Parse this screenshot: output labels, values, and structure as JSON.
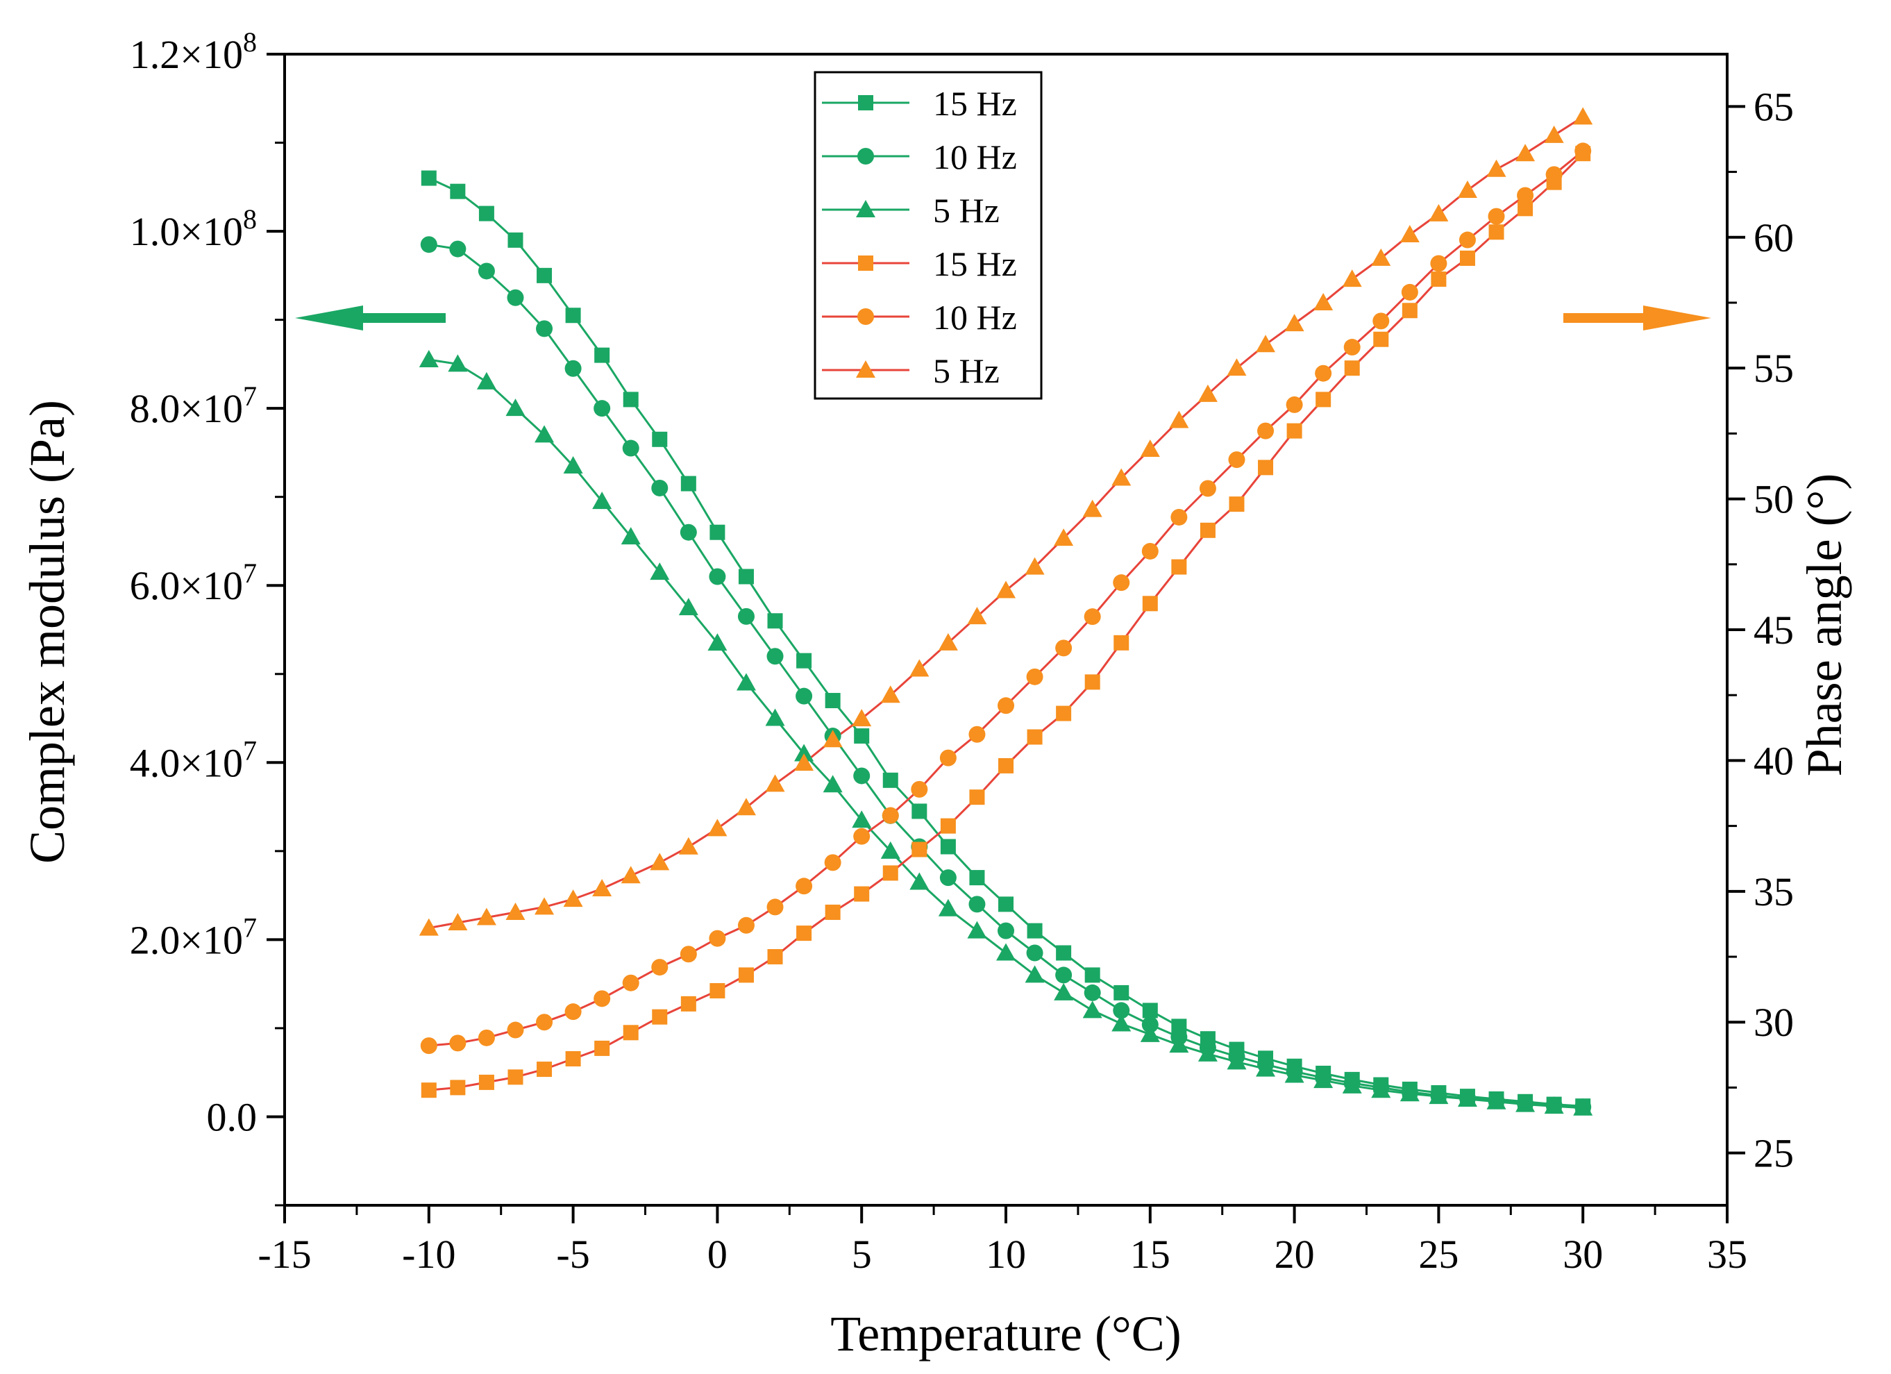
{
  "chart_data": {
    "type": "scatter",
    "title": "",
    "xlabel": "Temperature (°C)",
    "ylabel_left": "Complex modulus (Pa)",
    "ylabel_right": "Phase angle (°)",
    "xlim": [
      -15,
      35
    ],
    "ylim_left": [
      -10000000,
      120000000
    ],
    "ylim_right": [
      23,
      67
    ],
    "x_ticks": [
      "-15",
      "-10",
      "-5",
      "0",
      "5",
      "10",
      "15",
      "20",
      "25",
      "30",
      "35"
    ],
    "y_ticks_left": [
      {
        "value": 0,
        "label": "0.0"
      },
      {
        "value": 20000000,
        "mant": "2.0×10",
        "exp": "7"
      },
      {
        "value": 40000000,
        "mant": "4.0×10",
        "exp": "7"
      },
      {
        "value": 60000000,
        "mant": "6.0×10",
        "exp": "7"
      },
      {
        "value": 80000000,
        "mant": "8.0×10",
        "exp": "7"
      },
      {
        "value": 100000000,
        "mant": "1.0×10",
        "exp": "8"
      },
      {
        "value": 120000000,
        "mant": "1.2×10",
        "exp": "8"
      }
    ],
    "y_ticks_right": [
      "25",
      "30",
      "35",
      "40",
      "45",
      "50",
      "55",
      "60",
      "65"
    ],
    "colors": {
      "modulus": "#1aa764",
      "phase": "#f7901e",
      "line_green": "#1aa764",
      "line_red": "#e8443a"
    },
    "legend": [
      {
        "label": "15 Hz",
        "marker": "square",
        "group": "modulus"
      },
      {
        "label": "10 Hz",
        "marker": "circle",
        "group": "modulus"
      },
      {
        "label": "5 Hz",
        "marker": "triangle",
        "group": "modulus"
      },
      {
        "label": "15 Hz",
        "marker": "square",
        "group": "phase"
      },
      {
        "label": "10 Hz",
        "marker": "circle",
        "group": "phase"
      },
      {
        "label": "5 Hz",
        "marker": "triangle",
        "group": "phase"
      }
    ],
    "x": [
      -10,
      -9,
      -8,
      -7,
      -6,
      -5,
      -4,
      -3,
      -2,
      -1,
      0,
      1,
      2,
      3,
      4,
      5,
      6,
      7,
      8,
      9,
      10,
      11,
      12,
      13,
      14,
      15,
      16,
      17,
      18,
      19,
      20,
      21,
      22,
      23,
      24,
      25,
      26,
      27,
      28,
      29,
      30
    ],
    "series": [
      {
        "name": "15 Hz",
        "axis": "left",
        "marker": "square",
        "values": [
          106,
          104.5,
          102,
          99,
          95,
          90.5,
          86,
          81,
          76.5,
          71.5,
          66,
          61,
          56,
          51.5,
          47,
          43,
          38,
          34.5,
          30.5,
          27,
          24,
          21,
          18.5,
          16,
          14,
          12,
          10.2,
          8.8,
          7.6,
          6.6,
          5.7,
          4.9,
          4.2,
          3.6,
          3.1,
          2.7,
          2.3,
          2.0,
          1.7,
          1.4,
          1.2
        ]
      },
      {
        "name": "10 Hz",
        "axis": "left",
        "marker": "circle",
        "values": [
          98.5,
          98,
          95.5,
          92.5,
          89,
          84.5,
          80,
          75.5,
          71,
          66,
          61,
          56.5,
          52,
          47.5,
          43,
          38.5,
          34,
          30.5,
          27,
          24,
          21,
          18.5,
          16,
          14,
          12,
          10.4,
          9.0,
          7.8,
          6.8,
          5.9,
          5.1,
          4.4,
          3.8,
          3.3,
          2.8,
          2.4,
          2.1,
          1.8,
          1.5,
          1.3,
          1.1
        ]
      },
      {
        "name": "5 Hz",
        "axis": "left",
        "marker": "triangle",
        "values": [
          85.5,
          85,
          83,
          80,
          77,
          73.5,
          69.5,
          65.5,
          61.5,
          57.5,
          53.5,
          49,
          45,
          41,
          37.5,
          33.5,
          30,
          26.5,
          23.5,
          21,
          18.5,
          16,
          14,
          12,
          10.5,
          9.3,
          8.1,
          7.1,
          6.2,
          5.4,
          4.7,
          4.1,
          3.5,
          3.0,
          2.6,
          2.3,
          2.0,
          1.7,
          1.4,
          1.2,
          1.0
        ]
      },
      {
        "name": "15 Hz",
        "axis": "right",
        "marker": "square",
        "values": [
          27.4,
          27.5,
          27.7,
          27.9,
          28.2,
          28.6,
          29.0,
          29.6,
          30.2,
          30.7,
          31.2,
          31.8,
          32.5,
          33.4,
          34.2,
          34.9,
          35.7,
          36.6,
          37.5,
          38.6,
          39.8,
          40.9,
          41.8,
          43.0,
          44.5,
          46.0,
          47.4,
          48.8,
          49.8,
          51.2,
          52.6,
          53.8,
          55.0,
          56.1,
          57.2,
          58.4,
          59.2,
          60.2,
          61.1,
          62.1,
          63.2
        ]
      },
      {
        "name": "10 Hz",
        "axis": "right",
        "marker": "circle",
        "values": [
          29.1,
          29.2,
          29.4,
          29.7,
          30.0,
          30.4,
          30.9,
          31.5,
          32.1,
          32.6,
          33.2,
          33.7,
          34.4,
          35.2,
          36.1,
          37.1,
          37.9,
          38.9,
          40.1,
          41.0,
          42.1,
          43.2,
          44.3,
          45.5,
          46.8,
          48.0,
          49.3,
          50.4,
          51.5,
          52.6,
          53.6,
          54.8,
          55.8,
          56.8,
          57.9,
          59.0,
          59.9,
          60.8,
          61.6,
          62.4,
          63.3
        ]
      },
      {
        "name": "5 Hz",
        "axis": "right",
        "marker": "triangle",
        "values": [
          33.6,
          33.8,
          34.0,
          34.2,
          34.4,
          34.7,
          35.1,
          35.6,
          36.1,
          36.7,
          37.4,
          38.2,
          39.1,
          39.9,
          40.8,
          41.6,
          42.5,
          43.5,
          44.5,
          45.5,
          46.5,
          47.4,
          48.5,
          49.6,
          50.8,
          51.9,
          53.0,
          54.0,
          55.0,
          55.9,
          56.7,
          57.5,
          58.4,
          59.2,
          60.1,
          60.9,
          61.8,
          62.6,
          63.2,
          63.9,
          64.6
        ]
      }
    ],
    "annotations": [
      {
        "type": "arrow",
        "direction": "left",
        "points_to": "left axis",
        "color": "#1aa764"
      },
      {
        "type": "arrow",
        "direction": "right",
        "points_to": "right axis",
        "color": "#f7901e"
      }
    ]
  }
}
